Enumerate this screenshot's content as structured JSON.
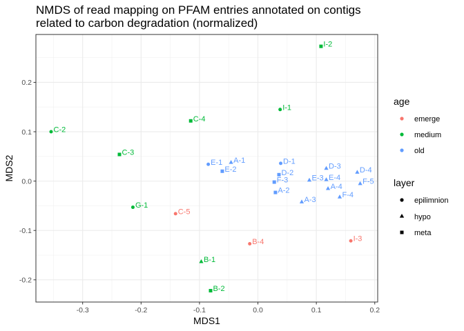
{
  "chart_data": {
    "type": "scatter",
    "title": [
      "NMDS of read mapping on PFAM entries annotated on contigs",
      "related to carbon degradation (normalized)"
    ],
    "xlabel": "MDS1",
    "ylabel": "MDS2",
    "xlim": [
      -0.38,
      0.205
    ],
    "ylim": [
      -0.245,
      0.297
    ],
    "xticks": [
      -0.3,
      -0.2,
      -0.1,
      0.0,
      0.1,
      0.2
    ],
    "xtick_labels": [
      "-0.3",
      "-0.2",
      "-0.1",
      "0.0",
      "0.1",
      "0.2"
    ],
    "yticks": [
      -0.2,
      -0.1,
      0.0,
      0.1,
      0.2
    ],
    "ytick_labels": [
      "-0.2",
      "-0.1",
      "0.0",
      "0.1",
      "0.2"
    ],
    "grid": true,
    "legend_position": "right",
    "colors": {
      "emerge": "#F8766D",
      "medium": "#00BA38",
      "old": "#619CFF"
    },
    "legend": {
      "age": {
        "title": "age",
        "items": [
          "emerge",
          "medium",
          "old"
        ]
      },
      "layer": {
        "title": "layer",
        "items": [
          "epilimnion",
          "hypo",
          "meta"
        ]
      }
    },
    "points": [
      {
        "label": "I-2",
        "x": 0.108,
        "y": 0.273,
        "age": "medium",
        "layer": "meta"
      },
      {
        "label": "I-1",
        "x": 0.038,
        "y": 0.145,
        "age": "medium",
        "layer": "epilimnion"
      },
      {
        "label": "C-4",
        "x": -0.115,
        "y": 0.122,
        "age": "medium",
        "layer": "meta"
      },
      {
        "label": "C-2",
        "x": -0.354,
        "y": 0.1,
        "age": "medium",
        "layer": "epilimnion"
      },
      {
        "label": "C-3",
        "x": -0.237,
        "y": 0.054,
        "age": "medium",
        "layer": "meta"
      },
      {
        "label": "E-1",
        "x": -0.085,
        "y": 0.034,
        "age": "old",
        "layer": "epilimnion"
      },
      {
        "label": "A-1",
        "x": -0.046,
        "y": 0.038,
        "age": "old",
        "layer": "hypo"
      },
      {
        "label": "E-2",
        "x": -0.061,
        "y": 0.02,
        "age": "old",
        "layer": "meta"
      },
      {
        "label": "D-1",
        "x": 0.039,
        "y": 0.036,
        "age": "old",
        "layer": "epilimnion"
      },
      {
        "label": "D-2",
        "x": 0.036,
        "y": 0.013,
        "age": "old",
        "layer": "meta"
      },
      {
        "label": "F-3",
        "x": 0.028,
        "y": -0.002,
        "age": "old",
        "layer": "meta"
      },
      {
        "label": "A-2",
        "x": 0.03,
        "y": -0.023,
        "age": "old",
        "layer": "meta"
      },
      {
        "label": "E-3",
        "x": 0.088,
        "y": 0.002,
        "age": "old",
        "layer": "hypo"
      },
      {
        "label": "D-3",
        "x": 0.117,
        "y": 0.026,
        "age": "old",
        "layer": "hypo"
      },
      {
        "label": "E-4",
        "x": 0.117,
        "y": 0.003,
        "age": "old",
        "layer": "hypo"
      },
      {
        "label": "A-4",
        "x": 0.12,
        "y": -0.015,
        "age": "old",
        "layer": "hypo"
      },
      {
        "label": "A-3",
        "x": 0.075,
        "y": -0.042,
        "age": "old",
        "layer": "hypo"
      },
      {
        "label": "F-4",
        "x": 0.14,
        "y": -0.032,
        "age": "old",
        "layer": "hypo"
      },
      {
        "label": "D-4",
        "x": 0.17,
        "y": 0.018,
        "age": "old",
        "layer": "hypo"
      },
      {
        "label": "F-5",
        "x": 0.175,
        "y": -0.005,
        "age": "old",
        "layer": "hypo"
      },
      {
        "label": "G-1",
        "x": -0.214,
        "y": -0.053,
        "age": "medium",
        "layer": "epilimnion"
      },
      {
        "label": "C-5",
        "x": -0.141,
        "y": -0.066,
        "age": "emerge",
        "layer": "epilimnion"
      },
      {
        "label": "B-4",
        "x": -0.014,
        "y": -0.127,
        "age": "emerge",
        "layer": "epilimnion"
      },
      {
        "label": "I-3",
        "x": 0.159,
        "y": -0.121,
        "age": "emerge",
        "layer": "epilimnion"
      },
      {
        "label": "B-1",
        "x": -0.097,
        "y": -0.163,
        "age": "medium",
        "layer": "hypo"
      },
      {
        "label": "B-2",
        "x": -0.081,
        "y": -0.222,
        "age": "medium",
        "layer": "meta"
      }
    ]
  }
}
